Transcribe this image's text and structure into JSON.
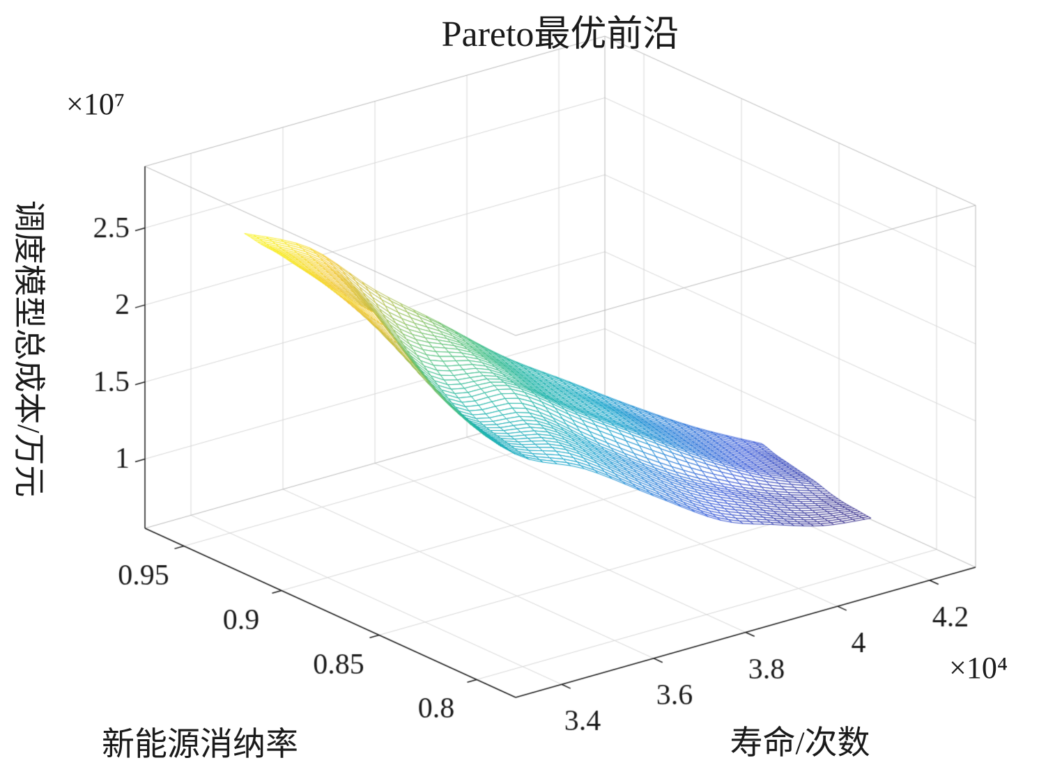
{
  "chart_data": {
    "type": "mesh",
    "plot_style": "3d-wireframe-surface",
    "title": "Pareto最优前沿",
    "xlabel": "寿命/次数",
    "ylabel": "新能源消纳率",
    "zlabel": "调度模型总成本/万元",
    "x_scale_label": "×10⁴",
    "z_scale_label": "×10⁷",
    "x_ticks": [
      34000,
      36000,
      38000,
      40000,
      42000
    ],
    "x_tick_labels": [
      "3.4",
      "3.6",
      "3.8",
      "4",
      "4.2"
    ],
    "y_ticks": [
      0.8,
      0.85,
      0.9,
      0.95
    ],
    "y_tick_labels": [
      "0.8",
      "0.85",
      "0.9",
      "0.95"
    ],
    "z_ticks": [
      10000000,
      15000000,
      20000000,
      25000000
    ],
    "z_tick_labels": [
      "1",
      "1.5",
      "2",
      "2.5"
    ],
    "x_range": [
      33000,
      43000
    ],
    "y_range": [
      0.78,
      0.97
    ],
    "z_range": [
      5500000,
      29000000
    ],
    "view": {
      "azimuth": -37.5,
      "elevation": 30
    },
    "grid": true,
    "legend": null,
    "colormap": "parula",
    "colormap_stops": [
      "#352a87",
      "#3355d8",
      "#1f7fd8",
      "#0da2c8",
      "#16b2a6",
      "#45bf7d",
      "#8abe54",
      "#c7bb3c",
      "#f2c52f",
      "#f9f521"
    ],
    "surface": {
      "x_values": [
        34400,
        35350,
        36300,
        37250,
        38200,
        39150,
        40100,
        41050,
        42000
      ],
      "y_back_edge": [
        0.952,
        0.941,
        0.93,
        0.92,
        0.909,
        0.898,
        0.888,
        0.877,
        0.866
      ],
      "y_front_edge": [
        0.886,
        0.872,
        0.858,
        0.845,
        0.832,
        0.82,
        0.815,
        0.812,
        0.81
      ],
      "z_grid": [
        [
          24500000,
          23400000,
          20500000,
          18200000,
          15800000,
          14000000,
          12200000,
          10600000,
          9400000
        ],
        [
          24300000,
          22800000,
          19200000,
          17600000,
          15400000,
          13600000,
          11800000,
          10300000,
          9100000
        ],
        [
          24200000,
          22200000,
          18000000,
          17100000,
          15000000,
          13300000,
          11500000,
          10000000,
          8900000
        ],
        [
          24000000,
          21500000,
          16800000,
          16500000,
          14600000,
          12900000,
          11200000,
          9700000,
          8700000
        ],
        [
          23800000,
          20800000,
          15800000,
          16000000,
          14200000,
          12500000,
          10800000,
          9400000,
          8500000
        ],
        [
          23600000,
          19800000,
          15000000,
          15000000,
          13000000,
          11200000,
          9800000,
          8800000,
          8200000
        ],
        [
          23500000,
          19000000,
          14600000,
          14300000,
          12400000,
          10600000,
          9400000,
          8500000,
          8000000
        ],
        [
          23300000,
          18200000,
          14300000,
          13700000,
          11800000,
          10000000,
          9000000,
          8200000,
          7900000
        ],
        [
          23200000,
          17500000,
          14000000,
          13000000,
          11200000,
          9500000,
          8700000,
          8000000,
          7800000
        ]
      ]
    }
  },
  "colors": {
    "axis": "#1a1a1a",
    "grid": "#d6d6d6",
    "box": "#b8b8b8",
    "background": "#ffffff"
  }
}
